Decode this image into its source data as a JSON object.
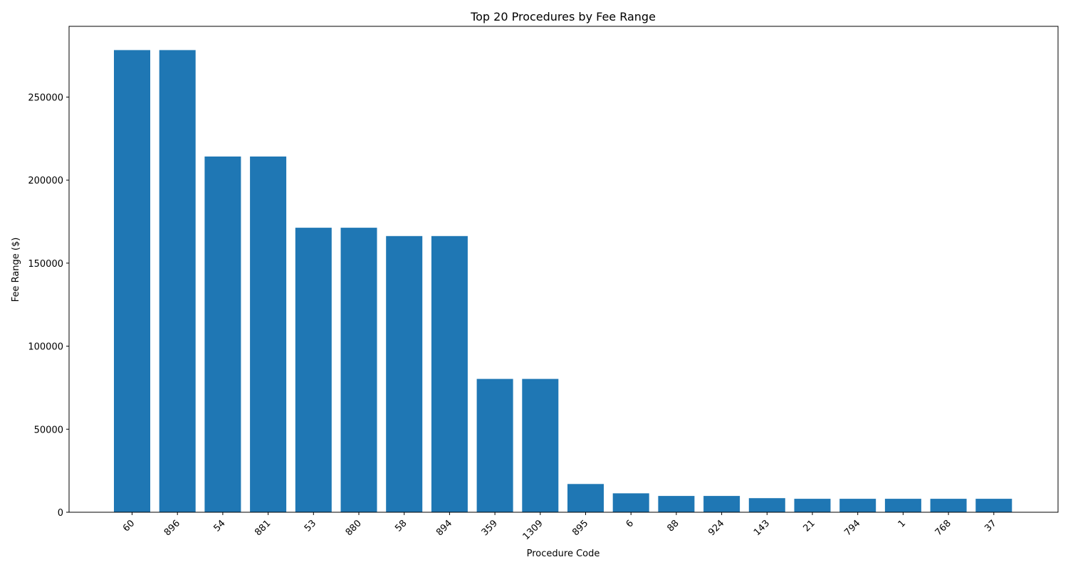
{
  "chart_data": {
    "type": "bar",
    "title": "Top 20 Procedures by Fee Range",
    "xlabel": "Procedure Code",
    "ylabel": "Fee Range ($)",
    "categories": [
      "60",
      "896",
      "54",
      "881",
      "53",
      "880",
      "58",
      "894",
      "359",
      "1309",
      "895",
      "6",
      "88",
      "924",
      "143",
      "21",
      "794",
      "1",
      "768",
      "37"
    ],
    "values": [
      278300,
      278300,
      214200,
      214200,
      171300,
      171300,
      166300,
      166300,
      80300,
      80300,
      17000,
      11400,
      9800,
      9800,
      8500,
      8100,
      8100,
      8100,
      8100,
      8100
    ],
    "ylim": [
      0,
      292600
    ],
    "yticks": [
      0,
      50000,
      100000,
      150000,
      200000,
      250000
    ],
    "ytick_labels": [
      "0",
      "50000",
      "100000",
      "150000",
      "200000",
      "250000"
    ],
    "grid": false,
    "bar_color": "#1f77b4"
  }
}
